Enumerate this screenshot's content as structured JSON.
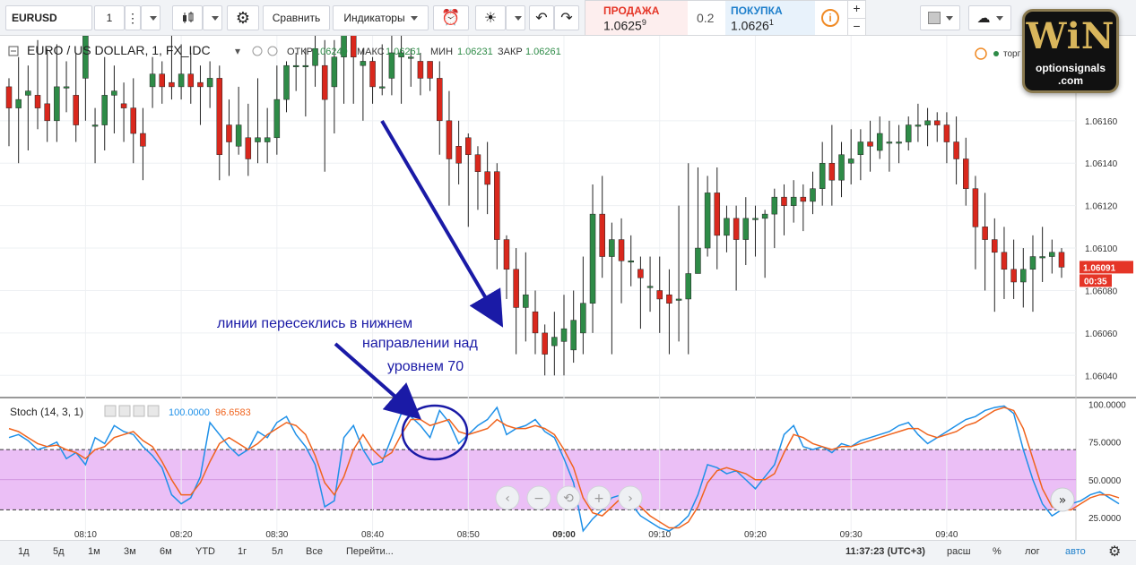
{
  "toolbar": {
    "symbol": "EURUSD",
    "interval": "1",
    "compare": "Сравнить",
    "indicators": "Индикаторы"
  },
  "trade": {
    "sell_label": "ПРОДАЖА",
    "sell_price": "1.0625",
    "sell_sup": "9",
    "spread": "0.2",
    "buy_label": "ПОКУПКА",
    "buy_price": "1.0626",
    "buy_sup": "1"
  },
  "legend": {
    "title": "EURO / US DOLLAR, 1, FX_IDC",
    "open_label": "ОТКР",
    "open": "1.06249",
    "high_label": "МАКС",
    "high": "1.06261",
    "low_label": "МИН",
    "low": "1.06231",
    "close_label": "ЗАКР",
    "close": "1.06261",
    "trade_hint": "торг"
  },
  "stoch_legend": {
    "name": "Stoch (14, 3, 1)",
    "k": "100.0000",
    "d": "96.6583"
  },
  "price_tag": {
    "value": "1.06091",
    "timer": "00:35"
  },
  "annotation": {
    "line1": "линии пересеклись в нижнем",
    "line2": "направлении над",
    "line3": "уровнем 70"
  },
  "logo": {
    "brand": "WiN",
    "line1": "optionsignals",
    "line2": ".com"
  },
  "bottom": {
    "periods": [
      "1д",
      "5д",
      "1м",
      "3м",
      "6м",
      "YTD",
      "1г",
      "5л",
      "Все"
    ],
    "goto": "Перейти...",
    "clock": "11:37:23 (UTC+3)",
    "scale_ext": "расш",
    "scale_pct": "%",
    "scale_log": "лог",
    "scale_auto": "авто"
  },
  "colors": {
    "up": "#2e8b47",
    "down": "#d9281d",
    "k_line": "#1e90e8",
    "d_line": "#f0641e",
    "band": "#e9b8f5",
    "accent": "#1a1aa6",
    "price_tag": "#e53527"
  },
  "chart_data": [
    {
      "type": "candlestick",
      "title": "EURO / US DOLLAR, 1, FX_IDC",
      "x_ticks": [
        "08:10",
        "08:20",
        "08:30",
        "08:40",
        "08:50",
        "09:00",
        "09:10",
        "09:20",
        "09:30",
        "09:40"
      ],
      "y_ticks": [
        "1.06040",
        "1.06060",
        "1.06080",
        "1.06100",
        "1.06120",
        "1.06140",
        "1.06160"
      ],
      "ylim": [
        1.0603,
        1.062
      ],
      "candles": [
        [
          1.06176,
          1.06166,
          1.0618,
          1.06148
        ],
        [
          1.06166,
          1.0617,
          1.0619,
          1.0614
        ],
        [
          1.06172,
          1.06174,
          1.06186,
          1.06146
        ],
        [
          1.06172,
          1.06166,
          1.06198,
          1.06156
        ],
        [
          1.06168,
          1.0616,
          1.06194,
          1.0615
        ],
        [
          1.0616,
          1.06176,
          1.06196,
          1.0615
        ],
        [
          1.06176,
          1.06176,
          1.06188,
          1.06164
        ],
        [
          1.06172,
          1.06158,
          1.06192,
          1.0615
        ],
        [
          1.0618,
          1.062,
          1.0621,
          1.0616
        ],
        [
          1.06158,
          1.06158,
          1.06166,
          1.0614
        ],
        [
          1.06158,
          1.06172,
          1.0619,
          1.06146
        ],
        [
          1.06172,
          1.06174,
          1.06186,
          1.06154
        ],
        [
          1.06168,
          1.06166,
          1.06178,
          1.0615
        ],
        [
          1.06166,
          1.06154,
          1.0618,
          1.0614
        ],
        [
          1.06154,
          1.06148,
          1.06166,
          1.06132
        ],
        [
          1.06176,
          1.06182,
          1.0619,
          1.06166
        ],
        [
          1.06182,
          1.06176,
          1.06188,
          1.06168
        ],
        [
          1.06178,
          1.06176,
          1.062,
          1.0617
        ],
        [
          1.06176,
          1.06182,
          1.06196,
          1.0617
        ],
        [
          1.06182,
          1.06176,
          1.06192,
          1.06168
        ],
        [
          1.06178,
          1.06176,
          1.06186,
          1.06158
        ],
        [
          1.06176,
          1.0618,
          1.06188,
          1.06166
        ],
        [
          1.0618,
          1.06144,
          1.06186,
          1.06132
        ],
        [
          1.06158,
          1.0615,
          1.0617,
          1.06134
        ],
        [
          1.06148,
          1.06158,
          1.06176,
          1.06144
        ],
        [
          1.06152,
          1.06142,
          1.06168,
          1.06134
        ],
        [
          1.0615,
          1.06152,
          1.0618,
          1.0614
        ],
        [
          1.0615,
          1.06152,
          1.06166,
          1.0614
        ],
        [
          1.06152,
          1.0617,
          1.06186,
          1.06144
        ],
        [
          1.0617,
          1.06186,
          1.06188,
          1.06164
        ],
        [
          1.06186,
          1.06186,
          1.06192,
          1.06174
        ],
        [
          1.06186,
          1.06186,
          1.06194,
          1.06162
        ],
        [
          1.06186,
          1.06194,
          1.062,
          1.06176
        ],
        [
          1.06186,
          1.0617,
          1.06198,
          1.06136
        ],
        [
          1.06176,
          1.0619,
          1.06198,
          1.06154
        ],
        [
          1.0619,
          1.06202,
          1.0621,
          1.06168
        ],
        [
          1.06202,
          1.0619,
          1.06206,
          1.06168
        ],
        [
          1.06186,
          1.06188,
          1.06194,
          1.0616
        ],
        [
          1.06188,
          1.06176,
          1.0619,
          1.06168
        ],
        [
          1.06176,
          1.06176,
          1.06196,
          1.06172
        ],
        [
          1.0618,
          1.06192,
          1.06202,
          1.06172
        ],
        [
          1.0619,
          1.06192,
          1.062,
          1.06168
        ],
        [
          1.0619,
          1.0619,
          1.06194,
          1.06176
        ],
        [
          1.06188,
          1.0618,
          1.06192,
          1.06172
        ],
        [
          1.06188,
          1.0618,
          1.06186,
          1.06174
        ],
        [
          1.0618,
          1.0616,
          1.06188,
          1.06144
        ],
        [
          1.0616,
          1.06142,
          1.06174,
          1.0612
        ],
        [
          1.06148,
          1.0614,
          1.0616,
          1.0613
        ],
        [
          1.06152,
          1.06144,
          1.06154,
          1.0611
        ],
        [
          1.06144,
          1.06136,
          1.06148,
          1.06118
        ],
        [
          1.06136,
          1.0613,
          1.0615,
          1.06116
        ],
        [
          1.06136,
          1.06104,
          1.0614,
          1.0609
        ],
        [
          1.06104,
          1.0609,
          1.06106,
          1.06076
        ],
        [
          1.0609,
          1.06072,
          1.061,
          1.0605
        ],
        [
          1.06072,
          1.06078,
          1.06098,
          1.06056
        ],
        [
          1.0607,
          1.0606,
          1.0608,
          1.0605
        ],
        [
          1.0606,
          1.0605,
          1.06064,
          1.0604
        ],
        [
          1.06054,
          1.06058,
          1.0607,
          1.0604
        ],
        [
          1.06056,
          1.06062,
          1.06078,
          1.0604
        ],
        [
          1.06052,
          1.06066,
          1.0608,
          1.06046
        ],
        [
          1.0606,
          1.06074,
          1.06096,
          1.0605
        ],
        [
          1.06074,
          1.06116,
          1.0613,
          1.0606
        ],
        [
          1.06116,
          1.06096,
          1.06134,
          1.06086
        ],
        [
          1.06096,
          1.06104,
          1.06112,
          1.0605
        ],
        [
          1.06104,
          1.06094,
          1.06114,
          1.06074
        ],
        [
          1.06094,
          1.06094,
          1.06106,
          1.06082
        ],
        [
          1.0609,
          1.06086,
          1.06096,
          1.06062
        ],
        [
          1.06082,
          1.06082,
          1.06096,
          1.0607
        ],
        [
          1.0608,
          1.06076,
          1.06096,
          1.0606
        ],
        [
          1.06078,
          1.06074,
          1.0609,
          1.0605
        ],
        [
          1.06076,
          1.06076,
          1.0612,
          1.06056
        ],
        [
          1.06076,
          1.06088,
          1.0614,
          1.0605
        ],
        [
          1.06088,
          1.061,
          1.06138,
          1.0609
        ],
        [
          1.061,
          1.06126,
          1.06134,
          1.06096
        ],
        [
          1.06126,
          1.06106,
          1.06138,
          1.0609
        ],
        [
          1.06106,
          1.06114,
          1.0612,
          1.06098
        ],
        [
          1.06114,
          1.06104,
          1.0612,
          1.0608
        ],
        [
          1.06104,
          1.06114,
          1.06124,
          1.06092
        ],
        [
          1.06114,
          1.06114,
          1.0612,
          1.06096
        ],
        [
          1.06114,
          1.06116,
          1.06118,
          1.06086
        ],
        [
          1.06116,
          1.06124,
          1.06128,
          1.061
        ],
        [
          1.06124,
          1.0612,
          1.0613,
          1.06106
        ],
        [
          1.0612,
          1.06124,
          1.06132,
          1.06112
        ],
        [
          1.06124,
          1.06122,
          1.0613,
          1.06108
        ],
        [
          1.06122,
          1.06128,
          1.06136,
          1.06116
        ],
        [
          1.06128,
          1.0614,
          1.0615,
          1.0612
        ],
        [
          1.0614,
          1.06132,
          1.06158,
          1.0612
        ],
        [
          1.06132,
          1.06144,
          1.0615,
          1.06124
        ],
        [
          1.0614,
          1.06142,
          1.06156,
          1.0613
        ],
        [
          1.06144,
          1.0615,
          1.06156,
          1.06132
        ],
        [
          1.0615,
          1.06148,
          1.0616,
          1.06136
        ],
        [
          1.06146,
          1.06154,
          1.06162,
          1.06142
        ],
        [
          1.0615,
          1.0615,
          1.0616,
          1.06136
        ],
        [
          1.0615,
          1.0615,
          1.06158,
          1.0614
        ],
        [
          1.0615,
          1.06158,
          1.06162,
          1.06146
        ],
        [
          1.06158,
          1.06158,
          1.06168,
          1.0615
        ],
        [
          1.06158,
          1.0616,
          1.06166,
          1.06148
        ],
        [
          1.0616,
          1.06158,
          1.06164,
          1.0615
        ],
        [
          1.06158,
          1.0615,
          1.06164,
          1.0614
        ],
        [
          1.0615,
          1.06142,
          1.06162,
          1.0613
        ],
        [
          1.06142,
          1.06128,
          1.06152,
          1.0612
        ],
        [
          1.06128,
          1.0611,
          1.06134,
          1.0609
        ],
        [
          1.0611,
          1.06104,
          1.06126,
          1.0608
        ],
        [
          1.06104,
          1.06098,
          1.06114,
          1.0607
        ],
        [
          1.06098,
          1.0609,
          1.0611,
          1.06076
        ],
        [
          1.0609,
          1.06084,
          1.06104,
          1.06076
        ],
        [
          1.06084,
          1.0609,
          1.061,
          1.06072
        ],
        [
          1.0609,
          1.06096,
          1.06106,
          1.0607
        ],
        [
          1.06096,
          1.06096,
          1.0611,
          1.06084
        ],
        [
          1.06096,
          1.06098,
          1.06104,
          1.06088
        ],
        [
          1.06098,
          1.06091,
          1.061,
          1.06086
        ]
      ]
    },
    {
      "type": "line",
      "title": "Stoch (14, 3, 1)",
      "y_ticks": [
        "25.0000",
        "50.0000",
        "75.0000",
        "100.0000"
      ],
      "ylim": [
        10,
        104
      ],
      "band": [
        30,
        70
      ],
      "series": [
        {
          "name": "%K",
          "values": [
            78,
            80,
            76,
            70,
            72,
            75,
            64,
            68,
            60,
            78,
            74,
            86,
            82,
            80,
            72,
            66,
            58,
            40,
            34,
            38,
            52,
            88,
            80,
            72,
            66,
            70,
            82,
            78,
            88,
            92,
            80,
            72,
            60,
            32,
            36,
            78,
            86,
            70,
            60,
            62,
            78,
            94,
            92,
            86,
            78,
            96,
            88,
            74,
            80,
            86,
            90,
            98,
            80,
            84,
            86,
            90,
            82,
            78,
            64,
            48,
            16,
            24,
            30,
            38,
            40,
            34,
            26,
            22,
            18,
            16,
            20,
            26,
            40,
            60,
            58,
            54,
            56,
            50,
            44,
            52,
            60,
            80,
            86,
            72,
            70,
            72,
            68,
            74,
            72,
            76,
            78,
            80,
            82,
            86,
            88,
            80,
            74,
            78,
            82,
            86,
            90,
            92,
            96,
            98,
            99,
            94,
            70,
            50,
            34,
            26,
            30,
            34,
            36,
            40,
            42,
            38,
            34
          ]
        },
        {
          "name": "%D",
          "values": [
            84,
            82,
            78,
            74,
            72,
            73,
            70,
            68,
            64,
            70,
            72,
            78,
            80,
            82,
            76,
            72,
            62,
            50,
            40,
            40,
            48,
            62,
            74,
            78,
            74,
            70,
            74,
            80,
            84,
            88,
            86,
            80,
            66,
            48,
            40,
            52,
            70,
            80,
            70,
            64,
            68,
            80,
            90,
            90,
            86,
            88,
            90,
            82,
            80,
            82,
            84,
            90,
            86,
            84,
            84,
            86,
            84,
            80,
            70,
            58,
            38,
            28,
            26,
            32,
            38,
            38,
            32,
            26,
            22,
            18,
            18,
            22,
            32,
            48,
            56,
            58,
            56,
            54,
            50,
            50,
            54,
            68,
            80,
            78,
            74,
            72,
            70,
            72,
            72,
            74,
            76,
            78,
            80,
            82,
            84,
            84,
            80,
            78,
            80,
            82,
            86,
            88,
            92,
            96,
            98,
            96,
            84,
            64,
            44,
            32,
            30,
            30,
            34,
            38,
            40,
            40,
            38
          ]
        }
      ]
    }
  ]
}
